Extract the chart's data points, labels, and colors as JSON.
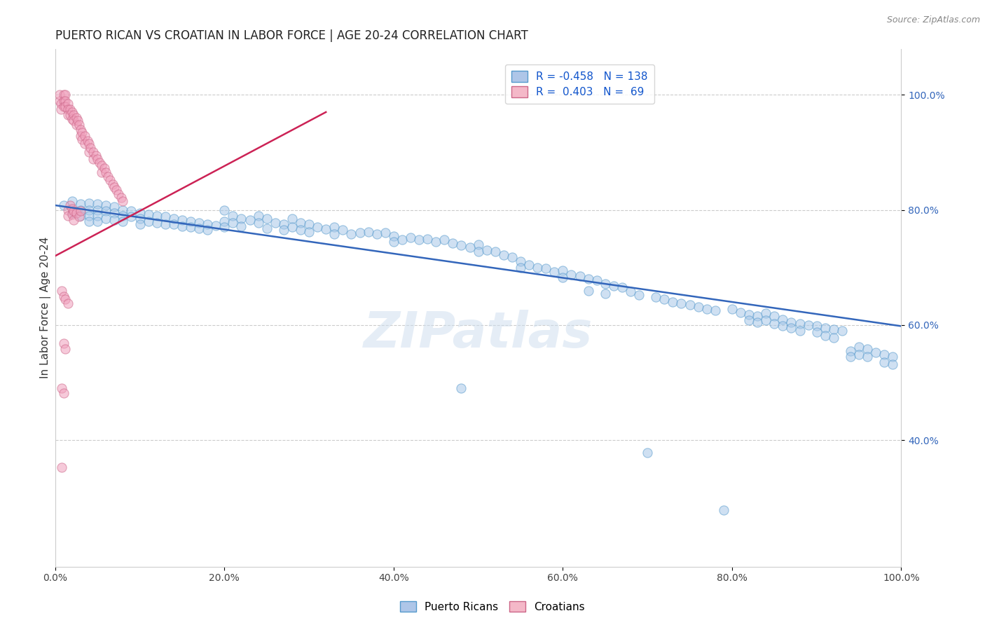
{
  "title": "PUERTO RICAN VS CROATIAN IN LABOR FORCE | AGE 20-24 CORRELATION CHART",
  "source": "Source: ZipAtlas.com",
  "ylabel": "In Labor Force | Age 20-24",
  "xlim": [
    0.0,
    1.0
  ],
  "ylim": [
    0.18,
    1.08
  ],
  "xticks": [
    0.0,
    0.2,
    0.4,
    0.6,
    0.8,
    1.0
  ],
  "yticks": [
    0.4,
    0.6,
    0.8,
    1.0
  ],
  "xticklabels": [
    "0.0%",
    "20.0%",
    "40.0%",
    "60.0%",
    "80.0%",
    "100.0%"
  ],
  "yticklabels": [
    "40.0%",
    "60.0%",
    "80.0%",
    "100.0%"
  ],
  "watermark": "ZIPatlas",
  "bg_color": "#ffffff",
  "scatter_alpha": 0.55,
  "scatter_size": 90,
  "blue_color": "#a8c8e8",
  "pink_color": "#f0a0bc",
  "blue_edge": "#5599cc",
  "pink_edge": "#cc6688",
  "grid_color": "#cccccc",
  "grid_style": "--",
  "title_fontsize": 12,
  "axis_label_fontsize": 11,
  "tick_fontsize": 10,
  "blue_line_x": [
    0.0,
    1.0
  ],
  "blue_line_y": [
    0.808,
    0.598
  ],
  "pink_line_x": [
    0.0,
    0.32
  ],
  "pink_line_y": [
    0.72,
    0.97
  ],
  "blue_scatter": [
    [
      0.01,
      0.808
    ],
    [
      0.02,
      0.815
    ],
    [
      0.02,
      0.795
    ],
    [
      0.03,
      0.81
    ],
    [
      0.03,
      0.8
    ],
    [
      0.03,
      0.79
    ],
    [
      0.04,
      0.812
    ],
    [
      0.04,
      0.8
    ],
    [
      0.04,
      0.79
    ],
    [
      0.04,
      0.78
    ],
    [
      0.05,
      0.81
    ],
    [
      0.05,
      0.8
    ],
    [
      0.05,
      0.79
    ],
    [
      0.05,
      0.78
    ],
    [
      0.06,
      0.808
    ],
    [
      0.06,
      0.798
    ],
    [
      0.06,
      0.785
    ],
    [
      0.07,
      0.805
    ],
    [
      0.07,
      0.795
    ],
    [
      0.07,
      0.782
    ],
    [
      0.08,
      0.8
    ],
    [
      0.08,
      0.79
    ],
    [
      0.08,
      0.78
    ],
    [
      0.09,
      0.798
    ],
    [
      0.09,
      0.788
    ],
    [
      0.1,
      0.795
    ],
    [
      0.1,
      0.785
    ],
    [
      0.1,
      0.775
    ],
    [
      0.11,
      0.792
    ],
    [
      0.11,
      0.78
    ],
    [
      0.12,
      0.79
    ],
    [
      0.12,
      0.778
    ],
    [
      0.13,
      0.788
    ],
    [
      0.13,
      0.775
    ],
    [
      0.14,
      0.785
    ],
    [
      0.14,
      0.775
    ],
    [
      0.15,
      0.783
    ],
    [
      0.15,
      0.772
    ],
    [
      0.16,
      0.78
    ],
    [
      0.16,
      0.77
    ],
    [
      0.17,
      0.778
    ],
    [
      0.17,
      0.768
    ],
    [
      0.18,
      0.775
    ],
    [
      0.18,
      0.765
    ],
    [
      0.19,
      0.773
    ],
    [
      0.2,
      0.8
    ],
    [
      0.2,
      0.78
    ],
    [
      0.2,
      0.77
    ],
    [
      0.21,
      0.79
    ],
    [
      0.21,
      0.778
    ],
    [
      0.22,
      0.785
    ],
    [
      0.22,
      0.772
    ],
    [
      0.23,
      0.782
    ],
    [
      0.24,
      0.79
    ],
    [
      0.24,
      0.778
    ],
    [
      0.25,
      0.785
    ],
    [
      0.25,
      0.768
    ],
    [
      0.26,
      0.778
    ],
    [
      0.27,
      0.775
    ],
    [
      0.27,
      0.765
    ],
    [
      0.28,
      0.785
    ],
    [
      0.28,
      0.77
    ],
    [
      0.29,
      0.778
    ],
    [
      0.29,
      0.765
    ],
    [
      0.3,
      0.775
    ],
    [
      0.3,
      0.762
    ],
    [
      0.31,
      0.77
    ],
    [
      0.32,
      0.767
    ],
    [
      0.33,
      0.77
    ],
    [
      0.33,
      0.758
    ],
    [
      0.34,
      0.765
    ],
    [
      0.35,
      0.758
    ],
    [
      0.36,
      0.76
    ],
    [
      0.37,
      0.762
    ],
    [
      0.38,
      0.758
    ],
    [
      0.39,
      0.76
    ],
    [
      0.4,
      0.755
    ],
    [
      0.4,
      0.745
    ],
    [
      0.41,
      0.748
    ],
    [
      0.42,
      0.752
    ],
    [
      0.43,
      0.748
    ],
    [
      0.44,
      0.75
    ],
    [
      0.45,
      0.745
    ],
    [
      0.46,
      0.748
    ],
    [
      0.47,
      0.742
    ],
    [
      0.48,
      0.49
    ],
    [
      0.48,
      0.738
    ],
    [
      0.49,
      0.735
    ],
    [
      0.5,
      0.74
    ],
    [
      0.5,
      0.728
    ],
    [
      0.51,
      0.73
    ],
    [
      0.52,
      0.728
    ],
    [
      0.53,
      0.722
    ],
    [
      0.54,
      0.718
    ],
    [
      0.55,
      0.71
    ],
    [
      0.55,
      0.7
    ],
    [
      0.56,
      0.705
    ],
    [
      0.57,
      0.7
    ],
    [
      0.58,
      0.698
    ],
    [
      0.59,
      0.692
    ],
    [
      0.6,
      0.695
    ],
    [
      0.6,
      0.682
    ],
    [
      0.61,
      0.688
    ],
    [
      0.62,
      0.685
    ],
    [
      0.63,
      0.68
    ],
    [
      0.63,
      0.66
    ],
    [
      0.64,
      0.678
    ],
    [
      0.65,
      0.672
    ],
    [
      0.65,
      0.655
    ],
    [
      0.66,
      0.668
    ],
    [
      0.67,
      0.665
    ],
    [
      0.68,
      0.658
    ],
    [
      0.69,
      0.652
    ],
    [
      0.7,
      0.378
    ],
    [
      0.71,
      0.648
    ],
    [
      0.72,
      0.645
    ],
    [
      0.73,
      0.64
    ],
    [
      0.74,
      0.638
    ],
    [
      0.75,
      0.635
    ],
    [
      0.76,
      0.632
    ],
    [
      0.77,
      0.628
    ],
    [
      0.78,
      0.625
    ],
    [
      0.79,
      0.278
    ],
    [
      0.8,
      0.628
    ],
    [
      0.81,
      0.622
    ],
    [
      0.82,
      0.618
    ],
    [
      0.82,
      0.608
    ],
    [
      0.83,
      0.615
    ],
    [
      0.83,
      0.605
    ],
    [
      0.84,
      0.62
    ],
    [
      0.84,
      0.608
    ],
    [
      0.85,
      0.615
    ],
    [
      0.85,
      0.602
    ],
    [
      0.86,
      0.61
    ],
    [
      0.86,
      0.598
    ],
    [
      0.87,
      0.605
    ],
    [
      0.87,
      0.595
    ],
    [
      0.88,
      0.602
    ],
    [
      0.88,
      0.59
    ],
    [
      0.89,
      0.6
    ],
    [
      0.9,
      0.598
    ],
    [
      0.9,
      0.588
    ],
    [
      0.91,
      0.595
    ],
    [
      0.91,
      0.582
    ],
    [
      0.92,
      0.592
    ],
    [
      0.92,
      0.578
    ],
    [
      0.93,
      0.59
    ],
    [
      0.94,
      0.555
    ],
    [
      0.94,
      0.545
    ],
    [
      0.95,
      0.562
    ],
    [
      0.95,
      0.548
    ],
    [
      0.96,
      0.558
    ],
    [
      0.96,
      0.545
    ],
    [
      0.97,
      0.552
    ],
    [
      0.98,
      0.548
    ],
    [
      0.98,
      0.535
    ],
    [
      0.99,
      0.545
    ],
    [
      0.99,
      0.532
    ]
  ],
  "pink_scatter": [
    [
      0.005,
      0.99
    ],
    [
      0.005,
      1.0
    ],
    [
      0.007,
      0.985
    ],
    [
      0.007,
      0.975
    ],
    [
      0.01,
      1.0
    ],
    [
      0.01,
      0.99
    ],
    [
      0.01,
      0.98
    ],
    [
      0.012,
      1.0
    ],
    [
      0.012,
      0.99
    ],
    [
      0.012,
      0.98
    ],
    [
      0.015,
      0.985
    ],
    [
      0.015,
      0.975
    ],
    [
      0.015,
      0.965
    ],
    [
      0.018,
      0.975
    ],
    [
      0.018,
      0.965
    ],
    [
      0.02,
      0.97
    ],
    [
      0.02,
      0.958
    ],
    [
      0.022,
      0.965
    ],
    [
      0.022,
      0.955
    ],
    [
      0.025,
      0.96
    ],
    [
      0.025,
      0.948
    ],
    [
      0.027,
      0.955
    ],
    [
      0.028,
      0.948
    ],
    [
      0.03,
      0.94
    ],
    [
      0.03,
      0.928
    ],
    [
      0.032,
      0.935
    ],
    [
      0.032,
      0.922
    ],
    [
      0.035,
      0.928
    ],
    [
      0.035,
      0.915
    ],
    [
      0.038,
      0.92
    ],
    [
      0.04,
      0.915
    ],
    [
      0.04,
      0.9
    ],
    [
      0.042,
      0.908
    ],
    [
      0.045,
      0.9
    ],
    [
      0.045,
      0.888
    ],
    [
      0.048,
      0.895
    ],
    [
      0.05,
      0.888
    ],
    [
      0.052,
      0.882
    ],
    [
      0.055,
      0.878
    ],
    [
      0.055,
      0.865
    ],
    [
      0.058,
      0.872
    ],
    [
      0.06,
      0.865
    ],
    [
      0.062,
      0.858
    ],
    [
      0.065,
      0.852
    ],
    [
      0.068,
      0.845
    ],
    [
      0.07,
      0.84
    ],
    [
      0.072,
      0.835
    ],
    [
      0.075,
      0.828
    ],
    [
      0.078,
      0.822
    ],
    [
      0.08,
      0.815
    ],
    [
      0.015,
      0.8
    ],
    [
      0.015,
      0.79
    ],
    [
      0.018,
      0.808
    ],
    [
      0.02,
      0.802
    ],
    [
      0.02,
      0.792
    ],
    [
      0.022,
      0.798
    ],
    [
      0.022,
      0.782
    ],
    [
      0.025,
      0.795
    ],
    [
      0.028,
      0.788
    ],
    [
      0.03,
      0.798
    ],
    [
      0.008,
      0.66
    ],
    [
      0.01,
      0.65
    ],
    [
      0.012,
      0.645
    ],
    [
      0.015,
      0.638
    ],
    [
      0.01,
      0.568
    ],
    [
      0.012,
      0.558
    ],
    [
      0.008,
      0.49
    ],
    [
      0.01,
      0.482
    ],
    [
      0.008,
      0.352
    ]
  ]
}
